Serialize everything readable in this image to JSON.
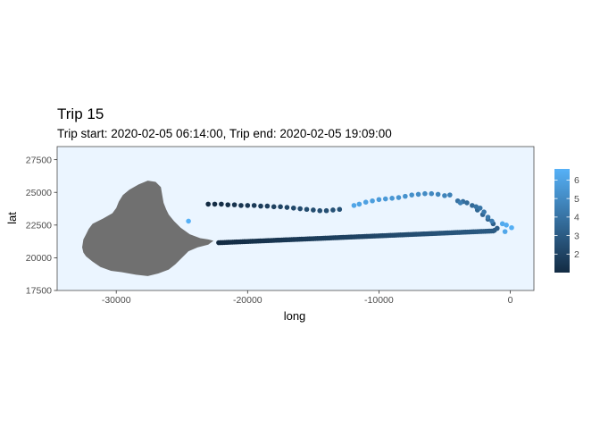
{
  "chart_data": {
    "type": "scatter",
    "title": "Trip 15",
    "subtitle": "Trip start: 2020-02-05 06:14:00, Trip end: 2020-02-05 19:09:00",
    "xlabel": "long",
    "ylabel": "lat",
    "xlim": [
      -34500,
      1800
    ],
    "ylim": [
      17500,
      28500
    ],
    "x_ticks": [
      -30000,
      -20000,
      -10000,
      0
    ],
    "x_tick_labels": [
      "-30000",
      "-20000",
      "-10000",
      "0"
    ],
    "y_ticks": [
      17500,
      20000,
      22500,
      25000,
      27500
    ],
    "y_tick_labels": [
      "17500",
      "20000",
      "22500",
      "25000",
      "27500"
    ],
    "grid": false,
    "panel_background": "#ebf5ff",
    "land_color": "#707070",
    "color_scale": {
      "low": "#132b43",
      "high": "#56b1f7",
      "min": 1,
      "max": 6.6,
      "breaks": [
        2,
        3,
        4,
        5,
        6
      ],
      "break_labels": [
        "2",
        "3",
        "4",
        "5",
        "6"
      ],
      "legend_position": "right"
    },
    "island_outline": [
      [
        -28300,
        25600
      ],
      [
        -27600,
        25900
      ],
      [
        -27000,
        25800
      ],
      [
        -26600,
        25400
      ],
      [
        -26500,
        24800
      ],
      [
        -26400,
        24200
      ],
      [
        -26200,
        23700
      ],
      [
        -26000,
        23300
      ],
      [
        -25600,
        22800
      ],
      [
        -25100,
        22300
      ],
      [
        -24400,
        21800
      ],
      [
        -23600,
        21500
      ],
      [
        -23000,
        21400
      ],
      [
        -22600,
        21300
      ],
      [
        -23000,
        21000
      ],
      [
        -23800,
        20800
      ],
      [
        -24500,
        20500
      ],
      [
        -25000,
        20000
      ],
      [
        -25500,
        19500
      ],
      [
        -26000,
        19100
      ],
      [
        -26800,
        18800
      ],
      [
        -27600,
        18600
      ],
      [
        -28500,
        18700
      ],
      [
        -29600,
        18900
      ],
      [
        -30400,
        19000
      ],
      [
        -31200,
        19300
      ],
      [
        -31800,
        19700
      ],
      [
        -32300,
        20100
      ],
      [
        -32500,
        20400
      ],
      [
        -32600,
        20800
      ],
      [
        -32500,
        21400
      ],
      [
        -32300,
        21800
      ],
      [
        -32100,
        22200
      ],
      [
        -31800,
        22600
      ],
      [
        -31000,
        23000
      ],
      [
        -30300,
        23400
      ],
      [
        -30000,
        23800
      ],
      [
        -29800,
        24300
      ],
      [
        -29500,
        24800
      ],
      [
        -29000,
        25200
      ]
    ],
    "outbound_path": {
      "x_range": [
        -22200,
        -1300
      ],
      "y_range": [
        21150,
        22050
      ],
      "color_range": [
        1,
        3
      ],
      "n_points": 140
    },
    "return_points": [
      [
        -1200,
        22100,
        3.0
      ],
      [
        -1000,
        22250,
        3.1
      ],
      [
        -1300,
        22600,
        3.2
      ],
      [
        -1700,
        22950,
        3.3
      ],
      [
        -2100,
        23300,
        3.4
      ],
      [
        -2500,
        23650,
        3.5
      ],
      [
        -2900,
        24000,
        3.6
      ],
      [
        -3300,
        24200,
        3.7
      ],
      [
        -3600,
        24300,
        3.8
      ],
      [
        -4000,
        24350,
        3.9
      ],
      [
        -2600,
        23900,
        4.0
      ],
      [
        -2300,
        23800,
        4.1
      ],
      [
        -2000,
        23500,
        4.2
      ],
      [
        -1700,
        23100,
        4.3
      ],
      [
        -1400,
        22800,
        4.4
      ],
      [
        -3800,
        24200,
        4.5
      ],
      [
        -4600,
        24800,
        4.6
      ],
      [
        -5000,
        24750,
        4.7
      ],
      [
        -5500,
        24850,
        4.8
      ],
      [
        -6000,
        24900,
        4.9
      ],
      [
        -6500,
        24900,
        5.0
      ],
      [
        -7000,
        24850,
        5.1
      ],
      [
        -7500,
        24800,
        5.2
      ],
      [
        -8000,
        24700,
        5.3
      ],
      [
        -8500,
        24600,
        5.4
      ],
      [
        -9000,
        24550,
        5.5
      ],
      [
        -9500,
        24500,
        5.6
      ],
      [
        -10000,
        24450,
        5.7
      ],
      [
        -10500,
        24350,
        5.8
      ],
      [
        -11000,
        24250,
        5.9
      ],
      [
        -11500,
        24100,
        6.0
      ],
      [
        -11900,
        24000,
        6.1
      ],
      [
        -13000,
        23700,
        2.6
      ],
      [
        -13500,
        23650,
        2.6
      ],
      [
        -14000,
        23600,
        2.5
      ],
      [
        -14500,
        23600,
        2.5
      ],
      [
        -15000,
        23650,
        2.4
      ],
      [
        -15500,
        23700,
        2.4
      ],
      [
        -16000,
        23750,
        2.3
      ],
      [
        -16500,
        23800,
        2.2
      ],
      [
        -17000,
        23850,
        2.1
      ],
      [
        -17500,
        23900,
        2.0
      ],
      [
        -18000,
        23900,
        1.9
      ],
      [
        -18500,
        23950,
        1.8
      ],
      [
        -19000,
        23950,
        1.7
      ],
      [
        -19500,
        24000,
        1.6
      ],
      [
        -20000,
        24000,
        1.5
      ],
      [
        -20500,
        24000,
        1.4
      ],
      [
        -21000,
        24050,
        1.3
      ],
      [
        -21500,
        24050,
        1.2
      ],
      [
        -22000,
        24100,
        1.1
      ],
      [
        -22500,
        24100,
        1.05
      ],
      [
        -23000,
        24100,
        1.0
      ],
      [
        -24500,
        22800,
        6.6
      ],
      [
        -600,
        22600,
        6.3
      ],
      [
        -300,
        22500,
        6.4
      ],
      [
        100,
        22300,
        6.5
      ],
      [
        -400,
        22000,
        6.2
      ]
    ]
  }
}
